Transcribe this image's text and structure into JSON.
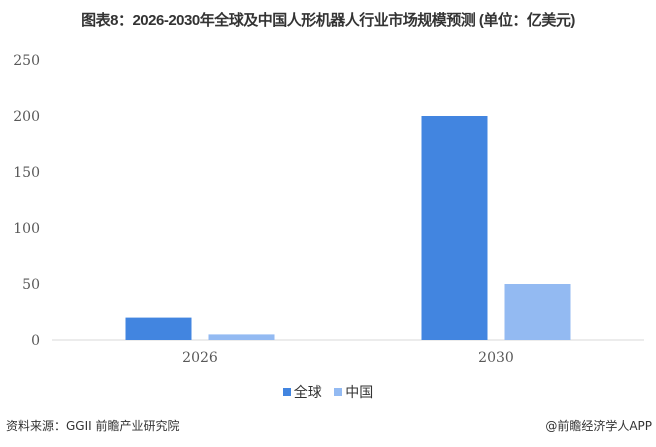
{
  "chart_data": {
    "type": "bar",
    "title": "图表8：2026-2030年全球及中国人形机器人行业市场规模预测 (单位：亿美元)",
    "categories": [
      "2026",
      "2030"
    ],
    "series": [
      {
        "name": "全球",
        "values": [
          20,
          200
        ],
        "color": "#4285E0"
      },
      {
        "name": "中国",
        "values": [
          5,
          50
        ],
        "color": "#93BAF2"
      }
    ],
    "xlabel": "",
    "ylabel": "",
    "ylim": [
      0,
      250
    ],
    "yticks": [
      0,
      50,
      100,
      150,
      200,
      250
    ],
    "grid": false,
    "legend": "bottom"
  },
  "footer": {
    "source": "资料来源：GGII 前瞻产业研究院",
    "credit": "@前瞻经济学人APP"
  },
  "watermark": "前瞻产业研究院"
}
